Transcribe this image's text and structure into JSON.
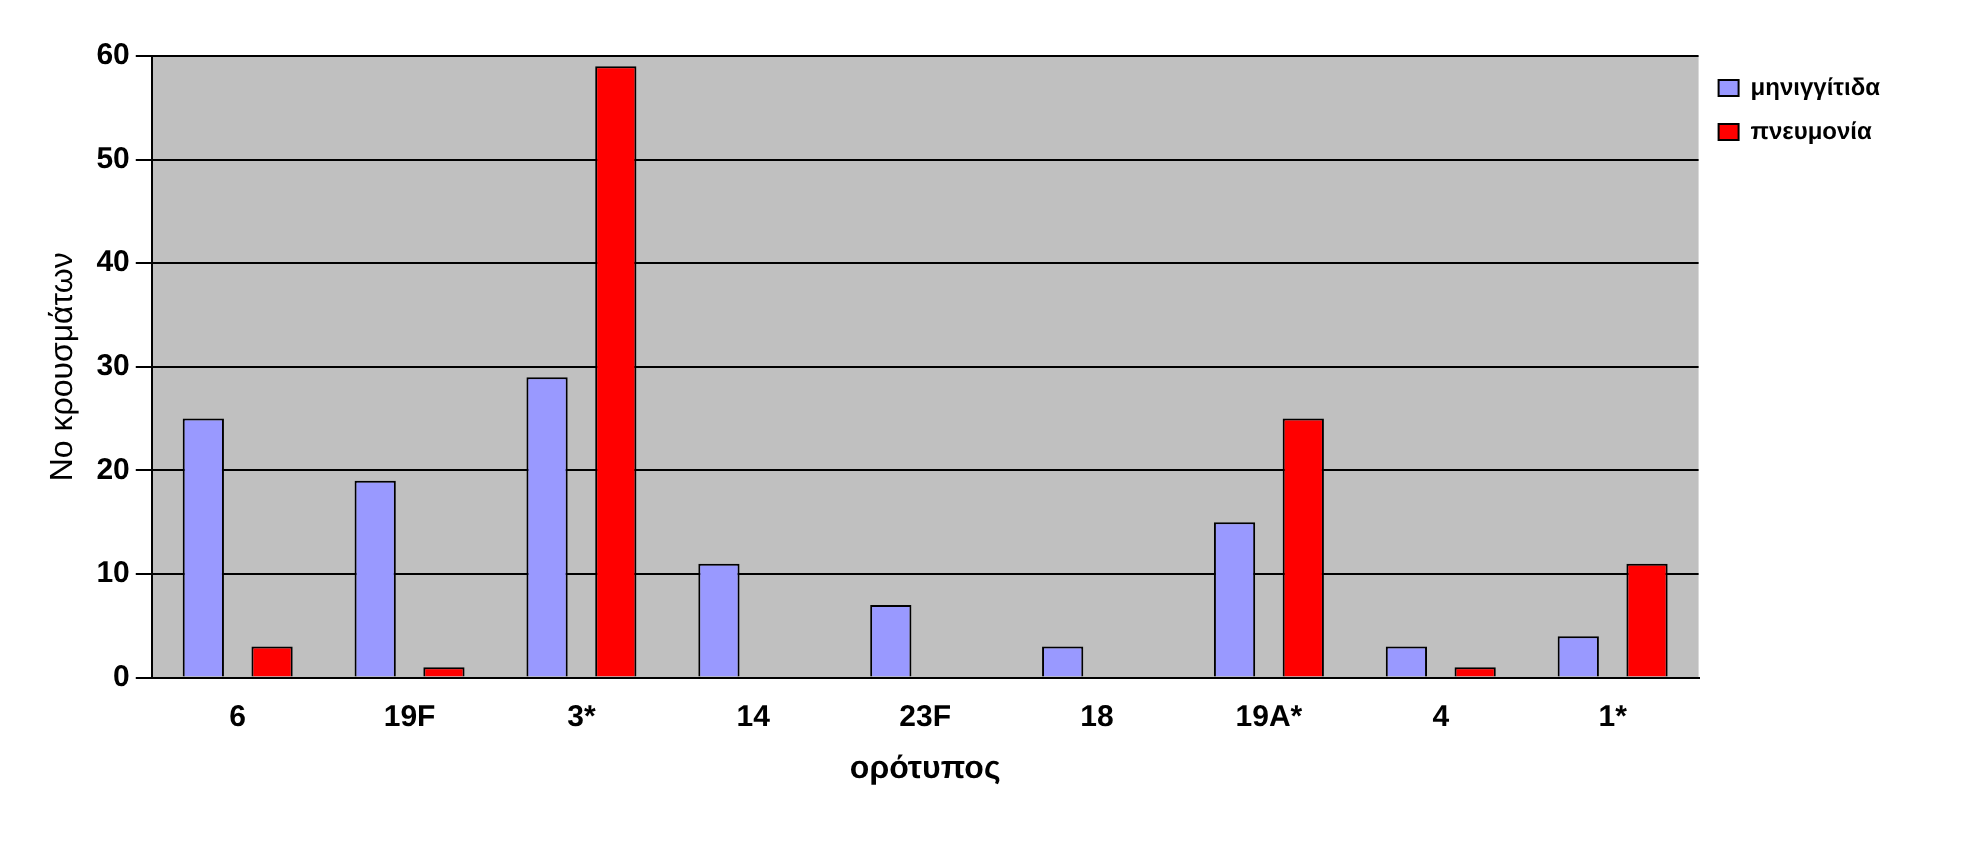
{
  "chart_data": {
    "type": "bar",
    "xlabel": "ορότυπος",
    "ylabel": "Νο κρουσμάτων",
    "categories": [
      "6",
      "19F",
      "3*",
      "14",
      "23F",
      "18",
      "19A*",
      "4",
      "1*"
    ],
    "series": [
      {
        "name": "μηνιγγίτιδα",
        "color": "#9999ff",
        "values": [
          25,
          19,
          29,
          11,
          7,
          3,
          15,
          3,
          4
        ]
      },
      {
        "name": "πνευμονία",
        "color": "#ff0000",
        "values": [
          3,
          1,
          59,
          0,
          0,
          0,
          25,
          1,
          11
        ]
      }
    ],
    "ylim": [
      0,
      60
    ],
    "yticks": [
      0,
      10,
      20,
      30,
      40,
      50,
      60
    ],
    "grid": "y",
    "legend": "top right"
  }
}
